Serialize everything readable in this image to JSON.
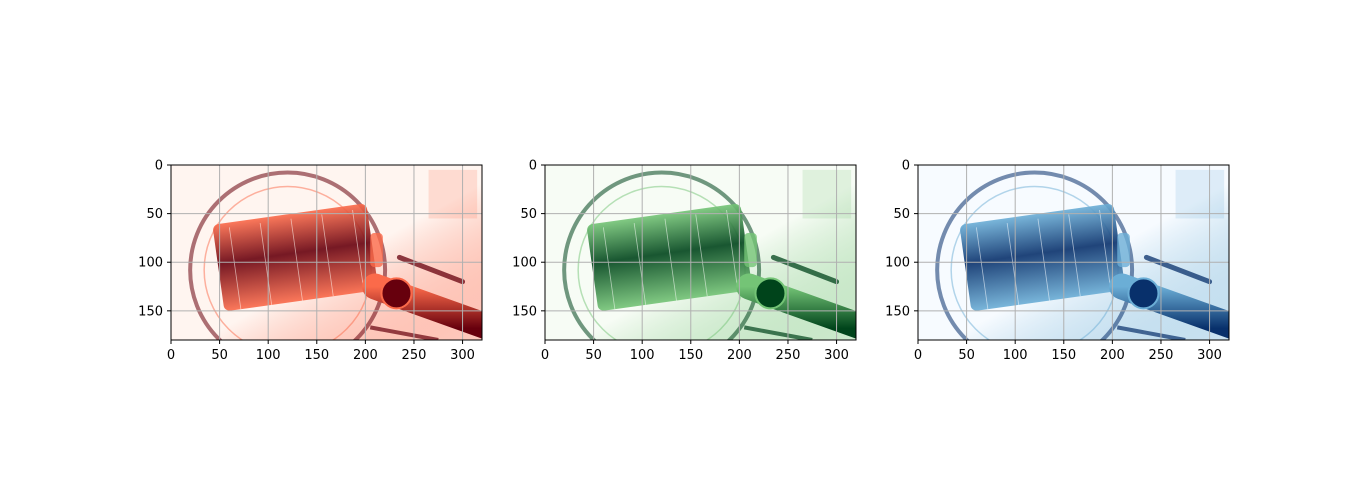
{
  "figure": {
    "background": "#ffffff"
  },
  "chart_data": [
    {
      "type": "heatmap",
      "panel": "red-channel",
      "colormap": "Reds",
      "colors": {
        "low": "#fff5f0",
        "mid": "#fb6a4a",
        "high": "#67000d"
      },
      "image_width": 320,
      "image_height": 180,
      "xlim": [
        0,
        320
      ],
      "ylim": [
        180,
        0
      ],
      "xticks": [
        0,
        50,
        100,
        150,
        200,
        250,
        300
      ],
      "yticks": [
        0,
        50,
        100,
        150
      ],
      "xtick_labels": [
        "0",
        "50",
        "100",
        "150",
        "200",
        "250",
        "300"
      ],
      "ytick_labels": [
        "0",
        "50",
        "100",
        "150"
      ],
      "grid": true,
      "title": "",
      "xlabel": "",
      "ylabel": ""
    },
    {
      "type": "heatmap",
      "panel": "green-channel",
      "colormap": "Greens",
      "colors": {
        "low": "#f7fcf5",
        "mid": "#74c476",
        "high": "#00441b"
      },
      "image_width": 320,
      "image_height": 180,
      "xlim": [
        0,
        320
      ],
      "ylim": [
        180,
        0
      ],
      "xticks": [
        0,
        50,
        100,
        150,
        200,
        250,
        300
      ],
      "yticks": [
        0,
        50,
        100,
        150
      ],
      "xtick_labels": [
        "0",
        "50",
        "100",
        "150",
        "200",
        "250",
        "300"
      ],
      "ytick_labels": [
        "0",
        "50",
        "100",
        "150"
      ],
      "grid": true,
      "title": "",
      "xlabel": "",
      "ylabel": ""
    },
    {
      "type": "heatmap",
      "panel": "blue-channel",
      "colormap": "Blues",
      "colors": {
        "low": "#f7fbff",
        "mid": "#6baed6",
        "high": "#08306b"
      },
      "image_width": 320,
      "image_height": 180,
      "xlim": [
        0,
        320
      ],
      "ylim": [
        180,
        0
      ],
      "xticks": [
        0,
        50,
        100,
        150,
        200,
        250,
        300
      ],
      "yticks": [
        0,
        50,
        100,
        150
      ],
      "xtick_labels": [
        "0",
        "50",
        "100",
        "150",
        "200",
        "250",
        "300"
      ],
      "ytick_labels": [
        "0",
        "50",
        "100",
        "150"
      ],
      "grid": true,
      "title": "",
      "xlabel": "",
      "ylabel": ""
    }
  ]
}
